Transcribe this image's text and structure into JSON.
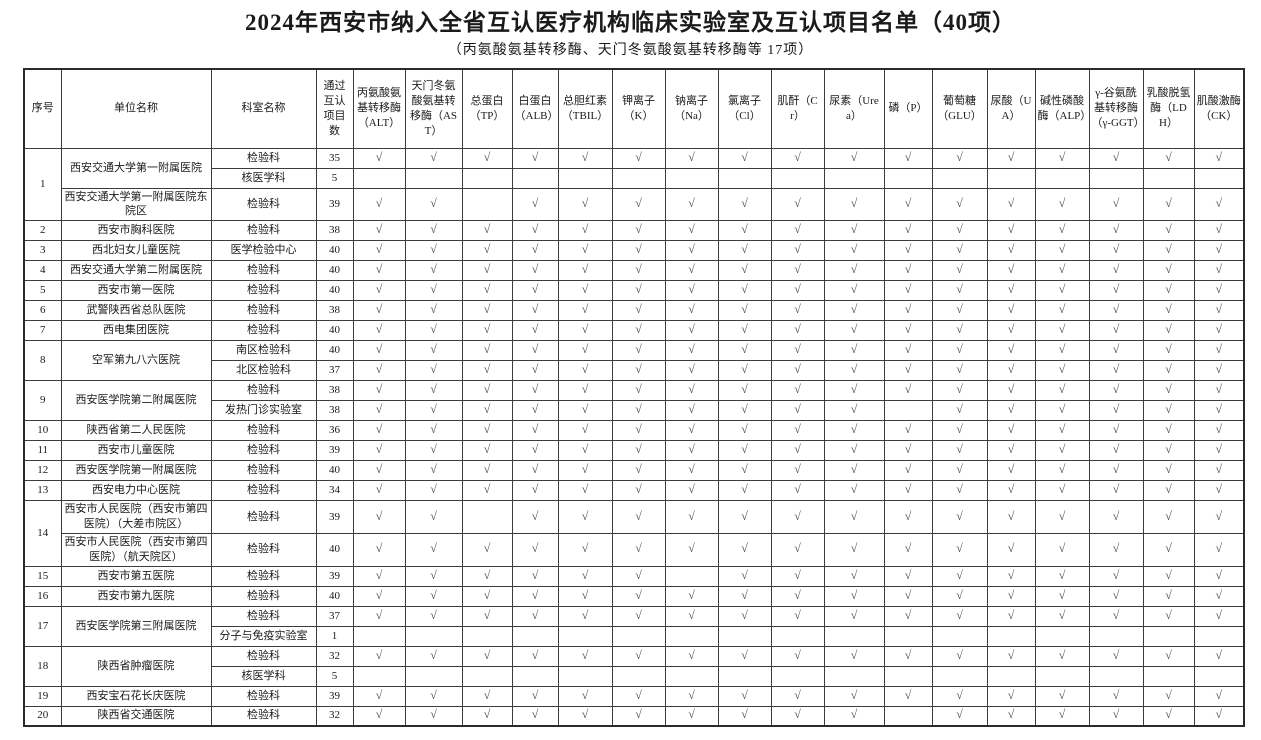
{
  "page": {
    "title": "2024年西安市纳入全省互认医疗机构临床实验室及互认项目名单（40项）",
    "subtitle": "（丙氨酸氨基转移酶、天门冬氨酸氨基转移酶等 17项）"
  },
  "table": {
    "check_mark": "√",
    "columns": {
      "seq": "序号",
      "unit": "单位名称",
      "dept": "科室名称",
      "count": "通过互认项目数"
    },
    "tests": [
      "丙氨酸氨基转移酶（ALT）",
      "天门冬氨酸氨基转移酶（AST）",
      "总蛋白（TP）",
      "白蛋白（ALB）",
      "总胆红素（TBIL）",
      "钾离子（K）",
      "钠离子（Na）",
      "氯离子（Cl）",
      "肌酐（Cr）",
      "尿素（Urea）",
      "磷（P）",
      "葡萄糖（GLU）",
      "尿酸（UA）",
      "碱性磷酸酶（ALP）",
      "γ-谷氨酰基转移酶（γ-GGT）",
      "乳酸脱氢酶（LDH）",
      "肌酸激酶（CK）"
    ],
    "groups": [
      {
        "seq": "1",
        "units": [
          {
            "name": "西安交通大学第一附属医院",
            "rows": [
              {
                "dept": "检验科",
                "count": "35",
                "checks": [
                  1,
                  1,
                  1,
                  1,
                  1,
                  1,
                  1,
                  1,
                  1,
                  1,
                  1,
                  1,
                  1,
                  1,
                  1,
                  1,
                  1
                ]
              },
              {
                "dept": "核医学科",
                "count": "5",
                "checks": [
                  0,
                  0,
                  0,
                  0,
                  0,
                  0,
                  0,
                  0,
                  0,
                  0,
                  0,
                  0,
                  0,
                  0,
                  0,
                  0,
                  0
                ]
              }
            ]
          },
          {
            "name": "西安交通大学第一附属医院东院区",
            "rows": [
              {
                "dept": "检验科",
                "count": "39",
                "checks": [
                  1,
                  1,
                  0,
                  1,
                  1,
                  1,
                  1,
                  1,
                  1,
                  1,
                  1,
                  1,
                  1,
                  1,
                  1,
                  1,
                  1
                ]
              }
            ]
          }
        ]
      },
      {
        "seq": "2",
        "units": [
          {
            "name": "西安市胸科医院",
            "rows": [
              {
                "dept": "检验科",
                "count": "38",
                "checks": [
                  1,
                  1,
                  1,
                  1,
                  1,
                  1,
                  1,
                  1,
                  1,
                  1,
                  1,
                  1,
                  1,
                  1,
                  1,
                  1,
                  1
                ]
              }
            ]
          }
        ]
      },
      {
        "seq": "3",
        "units": [
          {
            "name": "西北妇女儿童医院",
            "rows": [
              {
                "dept": "医学检验中心",
                "count": "40",
                "checks": [
                  1,
                  1,
                  1,
                  1,
                  1,
                  1,
                  1,
                  1,
                  1,
                  1,
                  1,
                  1,
                  1,
                  1,
                  1,
                  1,
                  1
                ]
              }
            ]
          }
        ]
      },
      {
        "seq": "4",
        "units": [
          {
            "name": "西安交通大学第二附属医院",
            "rows": [
              {
                "dept": "检验科",
                "count": "40",
                "checks": [
                  1,
                  1,
                  1,
                  1,
                  1,
                  1,
                  1,
                  1,
                  1,
                  1,
                  1,
                  1,
                  1,
                  1,
                  1,
                  1,
                  1
                ]
              }
            ]
          }
        ]
      },
      {
        "seq": "5",
        "units": [
          {
            "name": "西安市第一医院",
            "rows": [
              {
                "dept": "检验科",
                "count": "40",
                "checks": [
                  1,
                  1,
                  1,
                  1,
                  1,
                  1,
                  1,
                  1,
                  1,
                  1,
                  1,
                  1,
                  1,
                  1,
                  1,
                  1,
                  1
                ]
              }
            ]
          }
        ]
      },
      {
        "seq": "6",
        "units": [
          {
            "name": "武警陕西省总队医院",
            "rows": [
              {
                "dept": "检验科",
                "count": "38",
                "checks": [
                  1,
                  1,
                  1,
                  1,
                  1,
                  1,
                  1,
                  1,
                  1,
                  1,
                  1,
                  1,
                  1,
                  1,
                  1,
                  1,
                  1
                ]
              }
            ]
          }
        ]
      },
      {
        "seq": "7",
        "units": [
          {
            "name": "西电集团医院",
            "rows": [
              {
                "dept": "检验科",
                "count": "40",
                "checks": [
                  1,
                  1,
                  1,
                  1,
                  1,
                  1,
                  1,
                  1,
                  1,
                  1,
                  1,
                  1,
                  1,
                  1,
                  1,
                  1,
                  1
                ]
              }
            ]
          }
        ]
      },
      {
        "seq": "8",
        "units": [
          {
            "name": "空军第九八六医院",
            "rows": [
              {
                "dept": "南区检验科",
                "count": "40",
                "checks": [
                  1,
                  1,
                  1,
                  1,
                  1,
                  1,
                  1,
                  1,
                  1,
                  1,
                  1,
                  1,
                  1,
                  1,
                  1,
                  1,
                  1
                ]
              },
              {
                "dept": "北区检验科",
                "count": "37",
                "checks": [
                  1,
                  1,
                  1,
                  1,
                  1,
                  1,
                  1,
                  1,
                  1,
                  1,
                  1,
                  1,
                  1,
                  1,
                  1,
                  1,
                  1
                ]
              }
            ]
          }
        ]
      },
      {
        "seq": "9",
        "units": [
          {
            "name": "西安医学院第二附属医院",
            "rows": [
              {
                "dept": "检验科",
                "count": "38",
                "checks": [
                  1,
                  1,
                  1,
                  1,
                  1,
                  1,
                  1,
                  1,
                  1,
                  1,
                  1,
                  1,
                  1,
                  1,
                  1,
                  1,
                  1
                ]
              },
              {
                "dept": "发热门诊实验室",
                "count": "38",
                "checks": [
                  1,
                  1,
                  1,
                  1,
                  1,
                  1,
                  1,
                  1,
                  1,
                  1,
                  0,
                  1,
                  1,
                  1,
                  1,
                  1,
                  1
                ]
              }
            ]
          }
        ]
      },
      {
        "seq": "10",
        "units": [
          {
            "name": "陕西省第二人民医院",
            "rows": [
              {
                "dept": "检验科",
                "count": "36",
                "checks": [
                  1,
                  1,
                  1,
                  1,
                  1,
                  1,
                  1,
                  1,
                  1,
                  1,
                  1,
                  1,
                  1,
                  1,
                  1,
                  1,
                  1
                ]
              }
            ]
          }
        ]
      },
      {
        "seq": "11",
        "units": [
          {
            "name": "西安市儿童医院",
            "rows": [
              {
                "dept": "检验科",
                "count": "39",
                "checks": [
                  1,
                  1,
                  1,
                  1,
                  1,
                  1,
                  1,
                  1,
                  1,
                  1,
                  1,
                  1,
                  1,
                  1,
                  1,
                  1,
                  1
                ]
              }
            ]
          }
        ]
      },
      {
        "seq": "12",
        "units": [
          {
            "name": "西安医学院第一附属医院",
            "rows": [
              {
                "dept": "检验科",
                "count": "40",
                "checks": [
                  1,
                  1,
                  1,
                  1,
                  1,
                  1,
                  1,
                  1,
                  1,
                  1,
                  1,
                  1,
                  1,
                  1,
                  1,
                  1,
                  1
                ]
              }
            ]
          }
        ]
      },
      {
        "seq": "13",
        "units": [
          {
            "name": "西安电力中心医院",
            "rows": [
              {
                "dept": "检验科",
                "count": "34",
                "checks": [
                  1,
                  1,
                  1,
                  1,
                  1,
                  1,
                  1,
                  1,
                  1,
                  1,
                  1,
                  1,
                  1,
                  1,
                  1,
                  1,
                  1
                ]
              }
            ]
          }
        ]
      },
      {
        "seq": "14",
        "units": [
          {
            "name": "西安市人民医院（西安市第四医院）（大差市院区）",
            "rows": [
              {
                "dept": "检验科",
                "count": "39",
                "checks": [
                  1,
                  1,
                  0,
                  1,
                  1,
                  1,
                  1,
                  1,
                  1,
                  1,
                  1,
                  1,
                  1,
                  1,
                  1,
                  1,
                  1
                ]
              }
            ]
          },
          {
            "name": "西安市人民医院（西安市第四医院）（航天院区）",
            "rows": [
              {
                "dept": "检验科",
                "count": "40",
                "checks": [
                  1,
                  1,
                  1,
                  1,
                  1,
                  1,
                  1,
                  1,
                  1,
                  1,
                  1,
                  1,
                  1,
                  1,
                  1,
                  1,
                  1
                ]
              }
            ]
          }
        ]
      },
      {
        "seq": "15",
        "units": [
          {
            "name": "西安市第五医院",
            "rows": [
              {
                "dept": "检验科",
                "count": "39",
                "checks": [
                  1,
                  1,
                  1,
                  1,
                  1,
                  1,
                  0,
                  1,
                  1,
                  1,
                  1,
                  1,
                  1,
                  1,
                  1,
                  1,
                  1
                ]
              }
            ]
          }
        ]
      },
      {
        "seq": "16",
        "units": [
          {
            "name": "西安市第九医院",
            "rows": [
              {
                "dept": "检验科",
                "count": "40",
                "checks": [
                  1,
                  1,
                  1,
                  1,
                  1,
                  1,
                  1,
                  1,
                  1,
                  1,
                  1,
                  1,
                  1,
                  1,
                  1,
                  1,
                  1
                ]
              }
            ]
          }
        ]
      },
      {
        "seq": "17",
        "units": [
          {
            "name": "西安医学院第三附属医院",
            "rows": [
              {
                "dept": "检验科",
                "count": "37",
                "checks": [
                  1,
                  1,
                  1,
                  1,
                  1,
                  1,
                  1,
                  1,
                  1,
                  1,
                  1,
                  1,
                  1,
                  1,
                  1,
                  1,
                  1
                ]
              },
              {
                "dept": "分子与免疫实验室",
                "count": "1",
                "checks": [
                  0,
                  0,
                  0,
                  0,
                  0,
                  0,
                  0,
                  0,
                  0,
                  0,
                  0,
                  0,
                  0,
                  0,
                  0,
                  0,
                  0
                ]
              }
            ]
          }
        ]
      },
      {
        "seq": "18",
        "units": [
          {
            "name": "陕西省肿瘤医院",
            "rows": [
              {
                "dept": "检验科",
                "count": "32",
                "checks": [
                  1,
                  1,
                  1,
                  1,
                  1,
                  1,
                  1,
                  1,
                  1,
                  1,
                  1,
                  1,
                  1,
                  1,
                  1,
                  1,
                  1
                ]
              },
              {
                "dept": "核医学科",
                "count": "5",
                "checks": [
                  0,
                  0,
                  0,
                  0,
                  0,
                  0,
                  0,
                  0,
                  0,
                  0,
                  0,
                  0,
                  0,
                  0,
                  0,
                  0,
                  0
                ]
              }
            ]
          }
        ]
      },
      {
        "seq": "19",
        "units": [
          {
            "name": "西安宝石花长庆医院",
            "rows": [
              {
                "dept": "检验科",
                "count": "39",
                "checks": [
                  1,
                  1,
                  1,
                  1,
                  1,
                  1,
                  1,
                  1,
                  1,
                  1,
                  1,
                  1,
                  1,
                  1,
                  1,
                  1,
                  1
                ]
              }
            ]
          }
        ]
      },
      {
        "seq": "20",
        "units": [
          {
            "name": "陕西省交通医院",
            "rows": [
              {
                "dept": "检验科",
                "count": "32",
                "checks": [
                  1,
                  1,
                  1,
                  1,
                  1,
                  1,
                  1,
                  1,
                  1,
                  1,
                  0,
                  1,
                  1,
                  1,
                  1,
                  1,
                  1
                ]
              }
            ]
          }
        ]
      }
    ]
  }
}
